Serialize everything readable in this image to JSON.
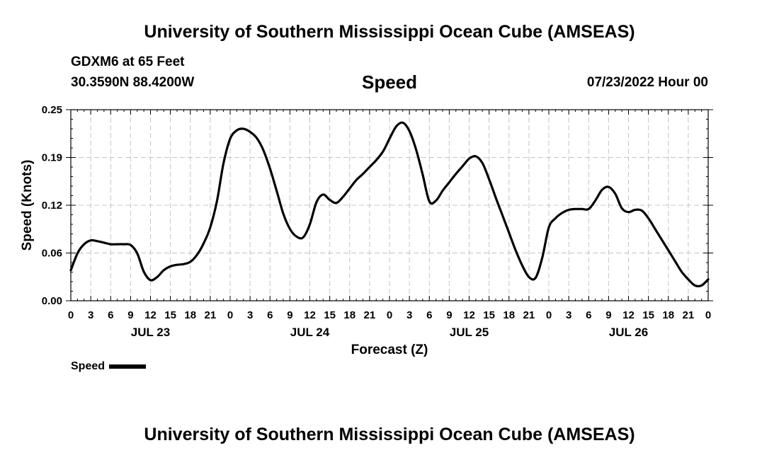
{
  "header": {
    "title": "University of Southern Mississippi Ocean Cube (AMSEAS)",
    "station": "GDXM6 at 65 Feet",
    "coords": "30.3590N  88.4200W",
    "datetime": "07/23/2022 Hour 00"
  },
  "footer": {
    "title": "University of Southern Mississippi Ocean Cube (AMSEAS)"
  },
  "legend": {
    "label": "Speed",
    "color": "#000000"
  },
  "chart_data": {
    "type": "line",
    "title": "Speed",
    "xlabel": "Forecast (Z)",
    "ylabel": "Speed (Knots)",
    "xlim": [
      0,
      96
    ],
    "ylim": [
      0,
      0.25
    ],
    "yticks": [
      "0.00",
      "0.06",
      "0.12",
      "0.19",
      "0.25"
    ],
    "ytick_values": [
      0,
      0.0625,
      0.125,
      0.1875,
      0.25
    ],
    "xtick_labels": [
      "0",
      "3",
      "6",
      "9",
      "12",
      "15",
      "18",
      "21",
      "0",
      "3",
      "6",
      "9",
      "12",
      "15",
      "18",
      "21",
      "0",
      "3",
      "6",
      "9",
      "12",
      "15",
      "18",
      "21",
      "0",
      "3",
      "6",
      "9",
      "12",
      "15",
      "18",
      "21",
      "0"
    ],
    "day_labels": [
      {
        "label": "JUL 23",
        "hour": 12
      },
      {
        "label": "JUL 24",
        "hour": 36
      },
      {
        "label": "JUL 25",
        "hour": 60
      },
      {
        "label": "JUL 26",
        "hour": 84
      }
    ],
    "grid": true,
    "series": [
      {
        "name": "Speed",
        "x": [
          0,
          1,
          2,
          3,
          4,
          5,
          6,
          7,
          8,
          9,
          10,
          11,
          12,
          13,
          14,
          15,
          16,
          17,
          18,
          19,
          20,
          21,
          22,
          23,
          24,
          25,
          26,
          27,
          28,
          29,
          30,
          31,
          32,
          33,
          34,
          35,
          36,
          37,
          38,
          39,
          40,
          41,
          42,
          43,
          44,
          45,
          46,
          47,
          48,
          49,
          50,
          51,
          52,
          53,
          54,
          55,
          56,
          57,
          58,
          59,
          60,
          61,
          62,
          63,
          64,
          65,
          66,
          67,
          68,
          69,
          70,
          71,
          72,
          73,
          74,
          75,
          76,
          77,
          78,
          79,
          80,
          81,
          82,
          83,
          84,
          85,
          86,
          87,
          88,
          89,
          90,
          91,
          92,
          93,
          94,
          95,
          96
        ],
        "values": [
          0.04,
          0.062,
          0.074,
          0.079,
          0.078,
          0.076,
          0.074,
          0.074,
          0.074,
          0.073,
          0.062,
          0.038,
          0.027,
          0.031,
          0.04,
          0.045,
          0.047,
          0.048,
          0.051,
          0.06,
          0.075,
          0.096,
          0.13,
          0.18,
          0.212,
          0.223,
          0.225,
          0.221,
          0.213,
          0.197,
          0.173,
          0.144,
          0.114,
          0.094,
          0.084,
          0.083,
          0.1,
          0.129,
          0.139,
          0.132,
          0.128,
          0.136,
          0.147,
          0.158,
          0.166,
          0.175,
          0.184,
          0.195,
          0.212,
          0.228,
          0.233,
          0.222,
          0.198,
          0.165,
          0.13,
          0.131,
          0.144,
          0.155,
          0.166,
          0.176,
          0.186,
          0.189,
          0.18,
          0.159,
          0.135,
          0.112,
          0.089,
          0.066,
          0.046,
          0.031,
          0.03,
          0.056,
          0.096,
          0.108,
          0.115,
          0.119,
          0.12,
          0.12,
          0.12,
          0.131,
          0.145,
          0.149,
          0.14,
          0.121,
          0.116,
          0.119,
          0.118,
          0.108,
          0.094,
          0.08,
          0.066,
          0.052,
          0.038,
          0.028,
          0.02,
          0.02,
          0.028
        ]
      }
    ]
  }
}
